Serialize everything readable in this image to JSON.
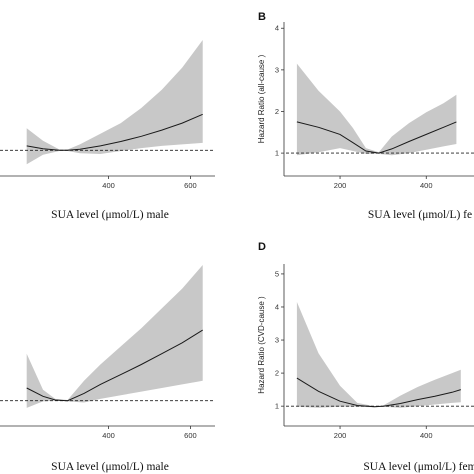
{
  "figure": {
    "ref_line_style": "dashed",
    "band_color": "#c8c8c8",
    "line_color": "#1a1a1a"
  },
  "chart_data": [
    {
      "panel": "A",
      "type": "line",
      "letter": "",
      "xlabel": "SUA level (μmol/L) male",
      "ylabel": "",
      "xlim": [
        130,
        660
      ],
      "ylim": [
        0.3,
        4.6
      ],
      "xticks": [
        400,
        600
      ],
      "yticks": [],
      "reference_y": 1.0,
      "x": [
        200,
        240,
        280,
        300,
        330,
        380,
        430,
        480,
        530,
        580,
        630
      ],
      "hr": [
        1.12,
        1.04,
        1.0,
        1.0,
        1.03,
        1.12,
        1.24,
        1.38,
        1.55,
        1.74,
        1.98
      ],
      "lower": [
        0.62,
        0.88,
        0.98,
        0.98,
        0.92,
        0.9,
        0.98,
        1.06,
        1.12,
        1.16,
        1.2
      ],
      "upper": [
        1.6,
        1.26,
        1.02,
        1.02,
        1.16,
        1.45,
        1.74,
        2.15,
        2.65,
        3.25,
        4.0
      ]
    },
    {
      "panel": "B",
      "type": "line",
      "letter": "B",
      "xlabel": "SUA level (μmol/L)  fe",
      "ylabel": "Hazard Ratio (all-cause )",
      "xlim": [
        70,
        520
      ],
      "ylim": [
        0.45,
        4.15
      ],
      "xticks": [
        200,
        400
      ],
      "yticks": [
        1,
        2,
        3,
        4
      ],
      "reference_y": 1.0,
      "x": [
        100,
        150,
        200,
        230,
        260,
        290,
        320,
        360,
        400,
        440,
        470
      ],
      "hr": [
        1.75,
        1.62,
        1.45,
        1.25,
        1.05,
        1.0,
        1.1,
        1.28,
        1.45,
        1.62,
        1.75
      ],
      "lower": [
        0.95,
        1.02,
        1.12,
        1.05,
        0.98,
        0.98,
        0.95,
        1.0,
        1.08,
        1.16,
        1.22
      ],
      "upper": [
        3.15,
        2.5,
        2.0,
        1.6,
        1.12,
        1.02,
        1.4,
        1.72,
        1.98,
        2.2,
        2.4
      ]
    },
    {
      "panel": "C",
      "type": "line",
      "letter": "",
      "xlabel": "SUA level (μmol/L) male",
      "ylabel": "",
      "xlim": [
        130,
        660
      ],
      "ylim": [
        0.3,
        5.0
      ],
      "xticks": [
        400,
        600
      ],
      "yticks": [],
      "reference_y": 1.0,
      "x": [
        200,
        240,
        270,
        300,
        340,
        380,
        430,
        480,
        530,
        580,
        630
      ],
      "hr": [
        1.35,
        1.12,
        1.02,
        1.0,
        1.2,
        1.45,
        1.72,
        2.0,
        2.3,
        2.6,
        2.95
      ],
      "lower": [
        0.8,
        0.98,
        1.0,
        0.98,
        0.95,
        1.05,
        1.15,
        1.25,
        1.35,
        1.45,
        1.55
      ],
      "upper": [
        2.3,
        1.3,
        1.05,
        1.02,
        1.55,
        2.0,
        2.5,
        3.0,
        3.55,
        4.1,
        4.75
      ]
    },
    {
      "panel": "D",
      "type": "line",
      "letter": "D",
      "xlabel": "SUA level (μmol/L)  fem",
      "ylabel": "Hazard Ratio (CVD-cause )",
      "xlim": [
        70,
        520
      ],
      "ylim": [
        0.4,
        5.3
      ],
      "xticks": [
        200,
        400
      ],
      "yticks": [
        1,
        2,
        3,
        4,
        5
      ],
      "reference_y": 1.0,
      "x": [
        100,
        150,
        200,
        240,
        280,
        300,
        340,
        380,
        420,
        460,
        480
      ],
      "hr": [
        1.85,
        1.45,
        1.15,
        1.02,
        0.98,
        1.0,
        1.08,
        1.2,
        1.3,
        1.42,
        1.5
      ],
      "lower": [
        0.98,
        0.95,
        0.98,
        0.98,
        0.97,
        0.98,
        0.95,
        1.0,
        1.05,
        1.1,
        1.12
      ],
      "upper": [
        4.15,
        2.6,
        1.62,
        1.1,
        1.0,
        1.02,
        1.32,
        1.58,
        1.8,
        2.0,
        2.1
      ]
    }
  ]
}
